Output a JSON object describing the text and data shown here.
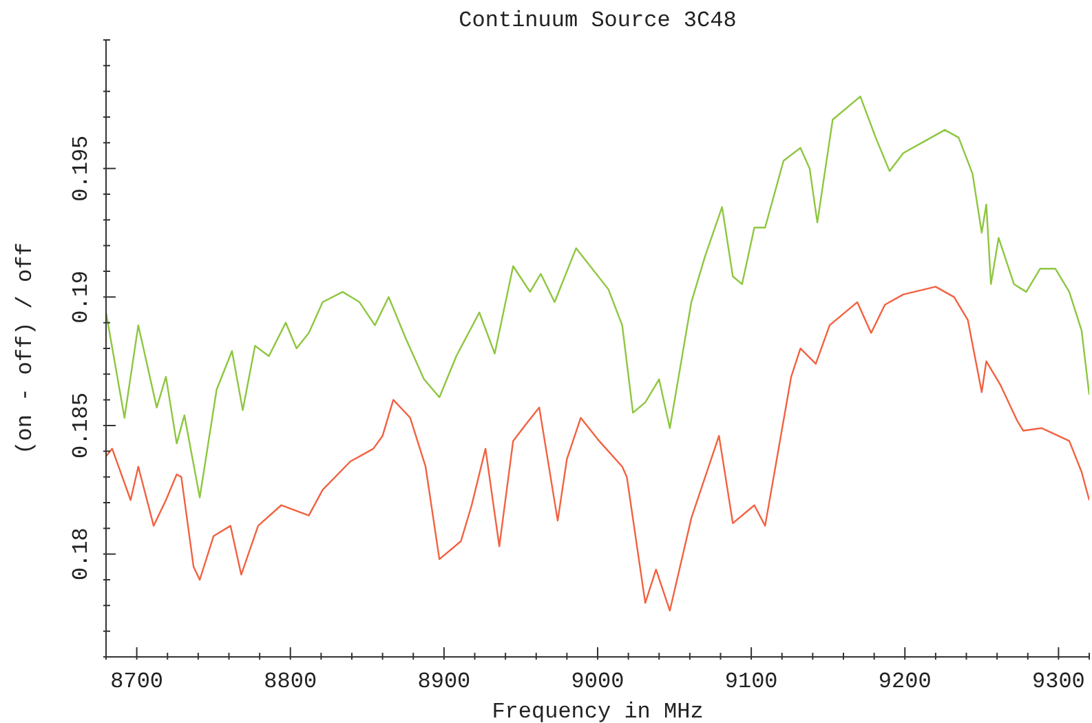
{
  "chart_data": {
    "type": "line",
    "title": "Continuum Source 3C48",
    "xlabel": "Frequency in MHz",
    "ylabel": "(on - off) / off",
    "xlim": [
      8680,
      9320
    ],
    "xticks": [
      {
        "value": 8680,
        "label": null
      },
      8700,
      {
        "value": 8720,
        "label": null
      },
      {
        "value": 8740,
        "label": null
      },
      {
        "value": 8760,
        "label": null
      },
      {
        "value": 8780,
        "label": null
      },
      8800,
      {
        "value": 8820,
        "label": null
      },
      {
        "value": 8840,
        "label": null
      },
      {
        "value": 8860,
        "label": null
      },
      {
        "value": 8880,
        "label": null
      },
      8900,
      {
        "value": 8920,
        "label": null
      },
      {
        "value": 8940,
        "label": null
      },
      {
        "value": 8960,
        "label": null
      },
      {
        "value": 8980,
        "label": null
      },
      9000,
      {
        "value": 9020,
        "label": null
      },
      {
        "value": 9040,
        "label": null
      },
      {
        "value": 9060,
        "label": null
      },
      {
        "value": 9080,
        "label": null
      },
      9100,
      {
        "value": 9120,
        "label": null
      },
      {
        "value": 9140,
        "label": null
      },
      {
        "value": 9160,
        "label": null
      },
      {
        "value": 9180,
        "label": null
      },
      9200,
      {
        "value": 9220,
        "label": null
      },
      {
        "value": 9240,
        "label": null
      },
      {
        "value": 9260,
        "label": null
      },
      {
        "value": 9280,
        "label": null
      },
      9300,
      {
        "value": 9320,
        "label": null
      }
    ],
    "ylim": [
      0.176,
      0.2
    ],
    "yticks": [
      {
        "value": 0.176,
        "label": null
      },
      {
        "value": 0.177,
        "label": null
      },
      {
        "value": 0.178,
        "label": null
      },
      {
        "value": 0.179,
        "label": null
      },
      0.18,
      {
        "value": 0.181,
        "label": null
      },
      {
        "value": 0.182,
        "label": null
      },
      {
        "value": 0.183,
        "label": null
      },
      {
        "value": 0.184,
        "label": null
      },
      0.185,
      {
        "value": 0.186,
        "label": null
      },
      {
        "value": 0.187,
        "label": null
      },
      {
        "value": 0.188,
        "label": null
      },
      {
        "value": 0.189,
        "label": null
      },
      0.19,
      {
        "value": 0.191,
        "label": null
      },
      {
        "value": 0.192,
        "label": null
      },
      {
        "value": 0.193,
        "label": null
      },
      {
        "value": 0.194,
        "label": null
      },
      0.195,
      {
        "value": 0.196,
        "label": null
      },
      {
        "value": 0.197,
        "label": null
      },
      {
        "value": 0.198,
        "label": null
      },
      {
        "value": 0.199,
        "label": null
      },
      {
        "value": 0.2,
        "label": null
      }
    ],
    "series": [
      {
        "color": "#8dc63f",
        "x": [
          8680,
          8692,
          8701,
          8713,
          8719,
          8726,
          8731,
          8741,
          8752,
          8762,
          8769,
          8777,
          8786,
          8797,
          8804,
          8812,
          8821,
          8834,
          8845,
          8855,
          8864,
          8875,
          8887,
          8897,
          8908,
          8923,
          8933,
          8945,
          8956,
          8963,
          8972,
          8986,
          9007,
          9016,
          9023,
          9031,
          9040,
          9047,
          9061,
          9070,
          9081,
          9088,
          9094,
          9102,
          9109,
          9121,
          9132,
          9138,
          9143,
          9153,
          9171,
          9181,
          9190,
          9199,
          9214,
          9226,
          9235,
          9244,
          9250,
          9253,
          9256,
          9261,
          9271,
          9279,
          9288,
          9298,
          9307,
          9315,
          9320
        ],
        "values": [
          0.1894,
          0.1853,
          0.1889,
          0.1857,
          0.1869,
          0.1843,
          0.1854,
          0.1822,
          0.1864,
          0.1879,
          0.1856,
          0.1881,
          0.1877,
          0.189,
          0.188,
          0.1886,
          0.1898,
          0.1902,
          0.1898,
          0.1889,
          0.19,
          0.1884,
          0.1868,
          0.1861,
          0.1877,
          0.1894,
          0.1878,
          0.1912,
          0.1902,
          0.1909,
          0.1898,
          0.1919,
          0.1903,
          0.1889,
          0.1855,
          0.1859,
          0.1868,
          0.1849,
          0.1898,
          0.1916,
          0.1935,
          0.1908,
          0.1905,
          0.1927,
          0.1927,
          0.1953,
          0.1958,
          0.195,
          0.1929,
          0.1969,
          0.1978,
          0.1962,
          0.1949,
          0.1956,
          0.1961,
          0.1965,
          0.1962,
          0.1948,
          0.1925,
          0.1936,
          0.1905,
          0.1923,
          0.1905,
          0.1902,
          0.1911,
          0.1911,
          0.1902,
          0.1887,
          0.1862
        ]
      },
      {
        "color": "#f26140",
        "x": [
          8680,
          8684,
          8696,
          8701,
          8711,
          8719,
          8726,
          8729,
          8737,
          8741,
          8750,
          8761,
          8768,
          8779,
          8794,
          8812,
          8821,
          8839,
          8854,
          8860,
          8867,
          8878,
          8888,
          8897,
          8911,
          8918,
          8927,
          8936,
          8945,
          8954,
          8962,
          8974,
          8980,
          8989,
          9001,
          9016,
          9019,
          9031,
          9038,
          9047,
          9061,
          9079,
          9088,
          9102,
          9109,
          9126,
          9132,
          9142,
          9151,
          9169,
          9178,
          9187,
          9199,
          9220,
          9232,
          9241,
          9250,
          9253,
          9262,
          9273,
          9277,
          9289,
          9307,
          9315,
          9320
        ],
        "values": [
          0.1838,
          0.1841,
          0.1821,
          0.1834,
          0.1811,
          0.1821,
          0.1831,
          0.183,
          0.1795,
          0.179,
          0.1807,
          0.1811,
          0.1792,
          0.1811,
          0.1819,
          0.1815,
          0.1825,
          0.1836,
          0.1841,
          0.1846,
          0.186,
          0.1853,
          0.1834,
          0.1798,
          0.1805,
          0.1819,
          0.1841,
          0.1803,
          0.1844,
          0.1851,
          0.1857,
          0.1813,
          0.1837,
          0.1853,
          0.1844,
          0.1834,
          0.183,
          0.1781,
          0.1794,
          0.1778,
          0.1814,
          0.1846,
          0.1812,
          0.1819,
          0.1811,
          0.1869,
          0.188,
          0.1874,
          0.1889,
          0.1898,
          0.1886,
          0.1897,
          0.1901,
          0.1904,
          0.19,
          0.1891,
          0.1863,
          0.1875,
          0.1866,
          0.1852,
          0.1848,
          0.1849,
          0.1844,
          0.1832,
          0.1821
        ]
      }
    ]
  }
}
